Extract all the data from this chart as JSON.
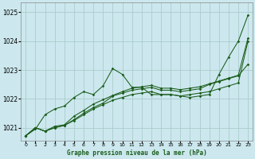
{
  "title": "Graphe pression niveau de la mer (hPa)",
  "background_color": "#cce8ee",
  "grid_color": "#aacccc",
  "line_color": "#1a5c1a",
  "xlim": [
    -0.5,
    23.5
  ],
  "ylim": [
    1020.55,
    1025.35
  ],
  "yticks": [
    1021,
    1022,
    1023,
    1024,
    1025
  ],
  "xticks": [
    0,
    1,
    2,
    3,
    4,
    5,
    6,
    7,
    8,
    9,
    10,
    11,
    12,
    13,
    14,
    15,
    16,
    17,
    18,
    19,
    20,
    21,
    22,
    23
  ],
  "series": [
    [
      1020.72,
      1021.0,
      1020.88,
      1021.0,
      1021.08,
      1021.25,
      1021.45,
      1021.65,
      1021.8,
      1021.95,
      1022.05,
      1022.15,
      1022.2,
      1022.25,
      1022.15,
      1022.15,
      1022.1,
      1022.15,
      1022.2,
      1022.25,
      1022.35,
      1022.45,
      1022.55,
      1024.0
    ],
    [
      1020.72,
      1020.95,
      1021.45,
      1021.65,
      1021.75,
      1022.05,
      1022.25,
      1022.15,
      1022.45,
      1023.05,
      1022.85,
      1022.4,
      1022.4,
      1022.15,
      1022.15,
      1022.15,
      1022.1,
      1022.05,
      1022.1,
      1022.15,
      1022.85,
      1023.45,
      1024.0,
      1024.9
    ],
    [
      1020.72,
      1021.0,
      1020.88,
      1021.0,
      1021.08,
      1021.28,
      1021.5,
      1021.7,
      1021.85,
      1022.1,
      1022.2,
      1022.3,
      1022.35,
      1022.4,
      1022.3,
      1022.3,
      1022.25,
      1022.3,
      1022.35,
      1022.5,
      1022.6,
      1022.7,
      1022.8,
      1023.2
    ],
    [
      1020.72,
      1021.0,
      1020.88,
      1021.05,
      1021.1,
      1021.4,
      1021.6,
      1021.82,
      1021.97,
      1022.12,
      1022.25,
      1022.37,
      1022.42,
      1022.47,
      1022.37,
      1022.37,
      1022.32,
      1022.37,
      1022.42,
      1022.52,
      1022.62,
      1022.72,
      1022.82,
      1024.1
    ]
  ]
}
